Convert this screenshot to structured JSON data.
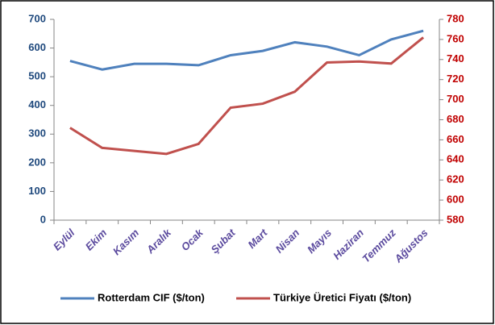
{
  "chart_data": {
    "type": "line",
    "categories": [
      "Eylül",
      "Ekim",
      "Kasım",
      "Aralık",
      "Ocak",
      "Şubat",
      "Mart",
      "Nisan",
      "Mayıs",
      "Haziran",
      "Temmuz",
      "Ağustos"
    ],
    "series": [
      {
        "name": "Rotterdam CIF ($/ton)",
        "color": "#4f81bd",
        "values": [
          555,
          525,
          545,
          545,
          540,
          575,
          590,
          620,
          605,
          575,
          630,
          660
        ]
      },
      {
        "name": "Türkiye Üretici Fiyatı ($/ton)",
        "color": "#c0504d",
        "axis": "y2",
        "values": [
          672,
          652,
          649,
          646,
          656,
          692,
          696,
          708,
          737,
          738,
          736,
          762
        ]
      }
    ],
    "ylim": [
      0,
      700
    ],
    "yticks": [
      0,
      100,
      200,
      300,
      400,
      500,
      600,
      700
    ],
    "y2lim": [
      580,
      780
    ],
    "y2ticks": [
      580,
      600,
      620,
      640,
      660,
      680,
      700,
      720,
      740,
      760,
      780
    ],
    "legend": "bottom",
    "grid": false
  }
}
